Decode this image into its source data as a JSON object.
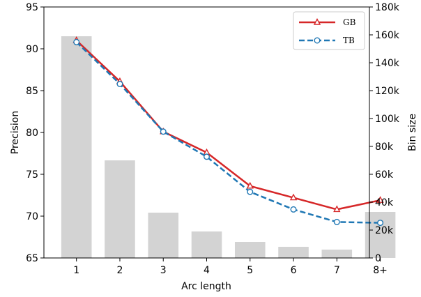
{
  "chart_data": {
    "type": "line",
    "x_label": "Arc length",
    "categories": [
      "1",
      "2",
      "3",
      "4",
      "5",
      "6",
      "7",
      "8+"
    ],
    "y_left": {
      "label": "Precision",
      "range": [
        65,
        95
      ],
      "ticks": [
        "65",
        "70",
        "75",
        "80",
        "85",
        "90",
        "95"
      ]
    },
    "y_right": {
      "label": "Bin size",
      "range": [
        0,
        180000
      ],
      "ticks": [
        "0",
        "20k",
        "40k",
        "60k",
        "80k",
        "100k",
        "120k",
        "140k",
        "160k",
        "180k"
      ]
    },
    "bars": {
      "axis": "right",
      "color": "#d3d3d3",
      "values": [
        159000,
        70000,
        32500,
        19000,
        11500,
        8000,
        6000,
        33000
      ]
    },
    "series": [
      {
        "name": "GB",
        "axis": "left",
        "color": "#d62728",
        "marker": "triangle-open",
        "line_style": "solid",
        "values": [
          91.0,
          86.1,
          80.1,
          77.6,
          73.6,
          72.2,
          70.8,
          71.9
        ]
      },
      {
        "name": "TB",
        "axis": "left",
        "color": "#1f77b4",
        "marker": "circle-open",
        "line_style": "dashed",
        "values": [
          90.8,
          85.8,
          80.1,
          77.1,
          72.9,
          70.8,
          69.3,
          69.2
        ]
      }
    ],
    "legend_position": "top-right",
    "grid": false
  }
}
